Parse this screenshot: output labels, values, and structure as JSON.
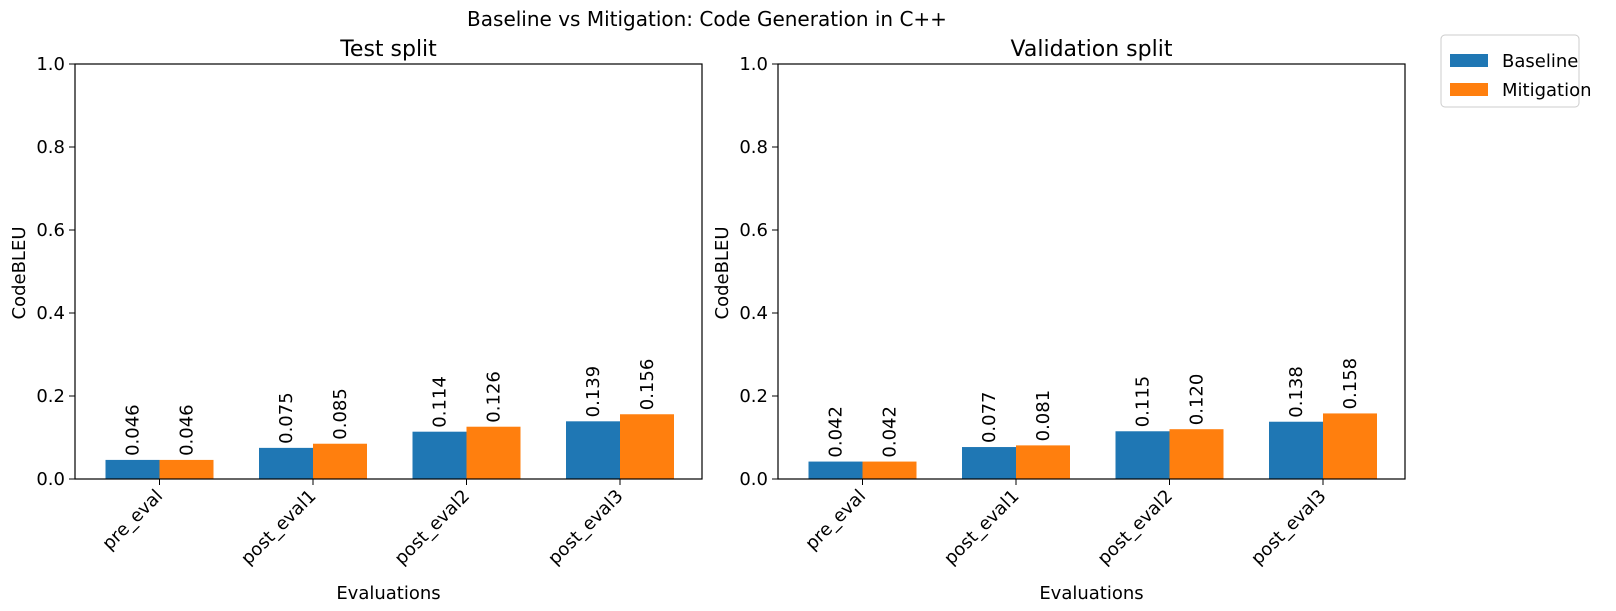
{
  "figure": {
    "suptitle": "Baseline vs Mitigation: Code Generation in C++"
  },
  "legend": {
    "placement": "outside-top-right",
    "entries": [
      {
        "label": "Baseline",
        "color": "#1f77b4"
      },
      {
        "label": "Mitigation",
        "color": "#ff7f0e"
      }
    ]
  },
  "chart_data": [
    {
      "type": "bar",
      "title": "Test split",
      "xlabel": "Evaluations",
      "ylabel": "CodeBLEU",
      "ylim": [
        0,
        1.0
      ],
      "yticks": [
        "0.0",
        "0.2",
        "0.4",
        "0.6",
        "0.8",
        "1.0"
      ],
      "grid": false,
      "categories": [
        "pre_eval",
        "post_eval1",
        "post_eval2",
        "post_eval3"
      ],
      "series": [
        {
          "name": "Baseline",
          "color": "#1f77b4",
          "values": [
            0.046,
            0.075,
            0.114,
            0.139
          ],
          "labels": [
            "0.046",
            "0.075",
            "0.114",
            "0.139"
          ]
        },
        {
          "name": "Mitigation",
          "color": "#ff7f0e",
          "values": [
            0.046,
            0.085,
            0.126,
            0.156
          ],
          "labels": [
            "0.046",
            "0.085",
            "0.126",
            "0.156"
          ]
        }
      ]
    },
    {
      "type": "bar",
      "title": "Validation split",
      "xlabel": "Evaluations",
      "ylabel": "CodeBLEU",
      "ylim": [
        0,
        1.0
      ],
      "yticks": [
        "0.0",
        "0.2",
        "0.4",
        "0.6",
        "0.8",
        "1.0"
      ],
      "grid": false,
      "categories": [
        "pre_eval",
        "post_eval1",
        "post_eval2",
        "post_eval3"
      ],
      "series": [
        {
          "name": "Baseline",
          "color": "#1f77b4",
          "values": [
            0.042,
            0.077,
            0.115,
            0.138
          ],
          "labels": [
            "0.042",
            "0.077",
            "0.115",
            "0.138"
          ]
        },
        {
          "name": "Mitigation",
          "color": "#ff7f0e",
          "values": [
            0.042,
            0.081,
            0.12,
            0.158
          ],
          "labels": [
            "0.042",
            "0.081",
            "0.120",
            "0.158"
          ]
        }
      ]
    }
  ]
}
